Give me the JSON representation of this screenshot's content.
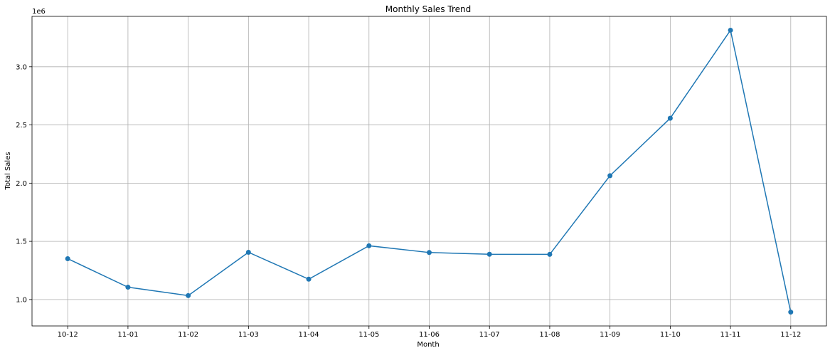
{
  "chart_data": {
    "type": "line",
    "title": "Monthly Sales Trend",
    "xlabel": "Month",
    "ylabel": "Total Sales",
    "y_offset_label": "1e6",
    "categories": [
      "10-12",
      "11-01",
      "11-02",
      "11-03",
      "11-04",
      "11-05",
      "11-06",
      "11-07",
      "11-08",
      "11-09",
      "11-10",
      "11-11",
      "11-12"
    ],
    "series": [
      {
        "values": [
          1.351,
          1.106,
          1.034,
          1.406,
          1.175,
          1.462,
          1.404,
          1.389,
          1.388,
          2.064,
          2.558,
          3.314,
          0.892
        ],
        "color": "#1f77b4",
        "marker": "circle"
      }
    ],
    "yticks": [
      1.0,
      1.5,
      2.0,
      2.5,
      3.0
    ],
    "ytick_labels": [
      "1.0",
      "1.5",
      "2.0",
      "2.5",
      "3.0"
    ],
    "ylim": [
      0.773,
      3.433
    ],
    "grid": true
  }
}
